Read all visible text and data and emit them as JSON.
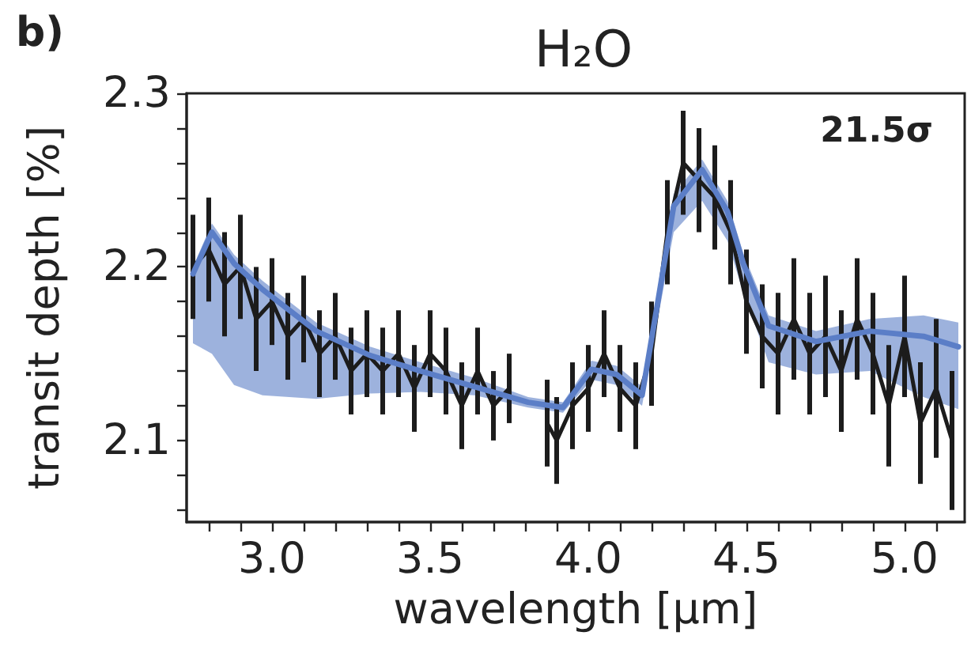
{
  "chart_data": {
    "type": "line",
    "title": "H₂O",
    "xlabel": "wavelength [µm]",
    "ylabel": "transit depth [%]",
    "annotations": [
      "b)",
      "21.5σ"
    ],
    "xlim": [
      2.73,
      5.19
    ],
    "ylim": [
      2.053,
      2.3
    ],
    "xticks": [
      {
        "value": 2.8,
        "label": null
      },
      {
        "value": 2.9,
        "label": null
      },
      {
        "value": 3.0,
        "label": "3.0"
      },
      {
        "value": 3.1,
        "label": null
      },
      {
        "value": 3.2,
        "label": null
      },
      {
        "value": 3.3,
        "label": null
      },
      {
        "value": 3.4,
        "label": null
      },
      {
        "value": 3.5,
        "label": "3.5"
      },
      {
        "value": 3.6,
        "label": null
      },
      {
        "value": 3.7,
        "label": null
      },
      {
        "value": 3.8,
        "label": null
      },
      {
        "value": 3.9,
        "label": null
      },
      {
        "value": 4.0,
        "label": "4.0"
      },
      {
        "value": 4.1,
        "label": null
      },
      {
        "value": 4.2,
        "label": null
      },
      {
        "value": 4.3,
        "label": null
      },
      {
        "value": 4.4,
        "label": null
      },
      {
        "value": 4.5,
        "label": "4.5"
      },
      {
        "value": 4.6,
        "label": null
      },
      {
        "value": 4.7,
        "label": null
      },
      {
        "value": 4.8,
        "label": null
      },
      {
        "value": 4.9,
        "label": null
      },
      {
        "value": 5.0,
        "label": "5.0"
      },
      {
        "value": 5.1,
        "label": null
      }
    ],
    "yticks": [
      {
        "value": 2.06,
        "label": null
      },
      {
        "value": 2.08,
        "label": null
      },
      2.1,
      {
        "value": 2.12,
        "label": null
      },
      {
        "value": 2.14,
        "label": null
      },
      {
        "value": 2.16,
        "label": null
      },
      {
        "value": 2.18,
        "label": null
      },
      2.2,
      {
        "value": 2.22,
        "label": null
      },
      {
        "value": 2.24,
        "label": null
      },
      {
        "value": 2.26,
        "label": null
      },
      {
        "value": 2.28,
        "label": null
      },
      2.3
    ],
    "grid": false,
    "marker": "none",
    "line_style": "solid",
    "series": [
      {
        "color": "#1c1c1c",
        "x": [
          2.75,
          2.8,
          2.85,
          2.9,
          2.95,
          3.0,
          3.05,
          3.1,
          3.15,
          3.2,
          3.25,
          3.3,
          3.35,
          3.4,
          3.45,
          3.5,
          3.55,
          3.6,
          3.65,
          3.7,
          3.75,
          3.8,
          3.87,
          3.9,
          3.95,
          4.0,
          4.05,
          4.1,
          4.15,
          4.2,
          4.25,
          4.3,
          4.35,
          4.4,
          4.45,
          4.5,
          4.55,
          4.6,
          4.65,
          4.7,
          4.75,
          4.8,
          4.85,
          4.9,
          4.95,
          5.0,
          5.05,
          5.1,
          5.15
        ],
        "values": [
          2.2,
          2.21,
          2.19,
          2.2,
          2.17,
          2.18,
          2.16,
          2.17,
          2.15,
          2.16,
          2.14,
          2.15,
          2.14,
          2.15,
          2.13,
          2.15,
          2.14,
          2.12,
          2.14,
          2.12,
          2.13,
          null,
          2.11,
          2.1,
          2.12,
          2.13,
          2.15,
          2.13,
          2.12,
          2.15,
          2.22,
          2.26,
          2.25,
          2.24,
          2.22,
          2.18,
          2.16,
          2.15,
          2.17,
          2.15,
          2.16,
          2.14,
          2.17,
          2.15,
          2.12,
          2.16,
          2.11,
          2.13,
          2.1
        ],
        "errors": [
          0.03,
          0.03,
          0.03,
          0.03,
          0.03,
          0.025,
          0.025,
          0.025,
          0.025,
          0.025,
          0.025,
          0.025,
          0.025,
          0.025,
          0.025,
          0.025,
          0.025,
          0.025,
          0.025,
          0.02,
          0.02,
          null,
          0.025,
          0.025,
          0.025,
          0.025,
          0.025,
          0.025,
          0.025,
          0.03,
          0.03,
          0.03,
          0.03,
          0.03,
          0.03,
          0.03,
          0.03,
          0.035,
          0.035,
          0.035,
          0.035,
          0.035,
          0.035,
          0.035,
          0.035,
          0.035,
          0.035,
          0.04,
          0.04
        ]
      },
      {
        "color": "#5b7ec7",
        "x": [
          2.75,
          2.81,
          2.88,
          2.97,
          3.14,
          3.31,
          3.47,
          3.64,
          3.81,
          3.92,
          4.01,
          4.09,
          4.17,
          4.22,
          4.27,
          4.36,
          4.44,
          4.49,
          4.57,
          4.72,
          4.89,
          5.06,
          5.17
        ],
        "values": [
          2.196,
          2.22,
          2.202,
          2.187,
          2.163,
          2.149,
          2.14,
          2.131,
          2.122,
          2.119,
          2.141,
          2.138,
          2.126,
          2.18,
          2.235,
          2.256,
          2.232,
          2.202,
          2.166,
          2.157,
          2.163,
          2.16,
          2.154
        ],
        "lower": [
          2.156,
          2.15,
          2.132,
          2.126,
          2.124,
          2.127,
          2.128,
          2.126,
          2.119,
          2.116,
          2.135,
          2.132,
          2.12,
          2.17,
          2.22,
          2.238,
          2.215,
          2.185,
          2.145,
          2.138,
          2.14,
          2.125,
          2.118
        ],
        "upper": [
          2.2,
          2.225,
          2.207,
          2.192,
          2.168,
          2.154,
          2.145,
          2.136,
          2.125,
          2.122,
          2.146,
          2.143,
          2.131,
          2.186,
          2.242,
          2.262,
          2.238,
          2.208,
          2.172,
          2.163,
          2.17,
          2.172,
          2.168
        ]
      }
    ]
  }
}
